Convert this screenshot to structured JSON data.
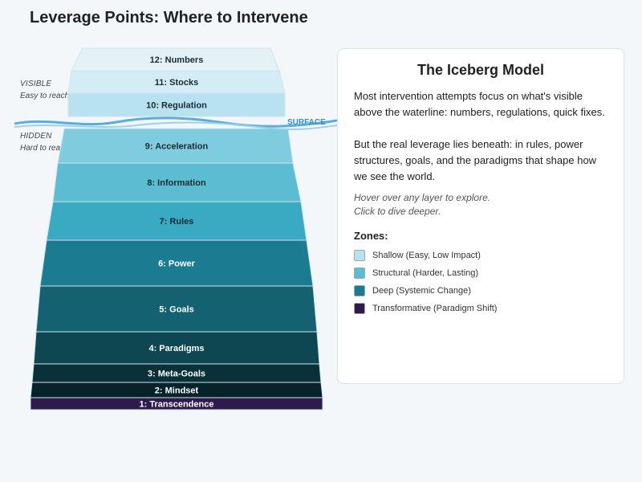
{
  "title": "Leverage Points: Where to Intervene",
  "zones_left": {
    "visible_title": "VISIBLE",
    "visible_sub": "Easy to reach",
    "hidden_title": "HIDDEN",
    "hidden_sub": "Hard to reach",
    "surface": "SURFACE"
  },
  "layers": [
    {
      "label": "12: Numbers",
      "color": "#e4f2f8",
      "text_color": "#1a2a33"
    },
    {
      "label": "11: Stocks",
      "color": "#d3ecf5",
      "text_color": "#1a2a33"
    },
    {
      "label": "10: Regulation",
      "color": "#b9e2f0",
      "text_color": "#1a2a33"
    },
    {
      "label": "9: Acceleration",
      "color": "#7fccdf",
      "text_color": "#1a2a33"
    },
    {
      "label": "8: Information",
      "color": "#5cbdd2",
      "text_color": "#1a2a33"
    },
    {
      "label": "7: Rules",
      "color": "#3aa9c2",
      "text_color": "#1a2a33"
    },
    {
      "label": "6: Power",
      "color": "#1b7c91",
      "text_color": "#ffffff"
    },
    {
      "label": "5: Goals",
      "color": "#146172",
      "text_color": "#ffffff"
    },
    {
      "label": "4: Paradigms",
      "color": "#0e4651",
      "text_color": "#ffffff"
    },
    {
      "label": "3: Meta-Goals",
      "color": "#0a3039",
      "text_color": "#ffffff"
    },
    {
      "label": "2: Mindset",
      "color": "#06232a",
      "text_color": "#ffffff"
    },
    {
      "label": "1: Transcendence",
      "color": "#2e1a4d",
      "text_color": "#ffffff"
    }
  ],
  "panel": {
    "title": "The Iceberg Model",
    "p1": "Most intervention attempts focus on what's visible above the waterline: numbers, regulations, quick fixes.",
    "p2": "But the real leverage lies beneath: in rules, power structures, goals, and the paradigms that shape how we see the world.",
    "hint1": "Hover over any layer to explore.",
    "hint2": "Click to dive deeper.",
    "zones_title": "Zones:",
    "legend": [
      {
        "label": "Shallow (Easy, Low Impact)",
        "color": "#b9e2f0"
      },
      {
        "label": "Structural (Harder, Lasting)",
        "color": "#5cbdd2"
      },
      {
        "label": "Deep (Systemic Change)",
        "color": "#1b7c91"
      },
      {
        "label": "Transformative (Paradigm Shift)",
        "color": "#2e1a4d"
      }
    ]
  },
  "colors": {
    "water": "#5aaedb",
    "water_light": "#9fd0ea",
    "surface_text": "#3a8fc6",
    "layer_border": "#cfe4ee"
  }
}
